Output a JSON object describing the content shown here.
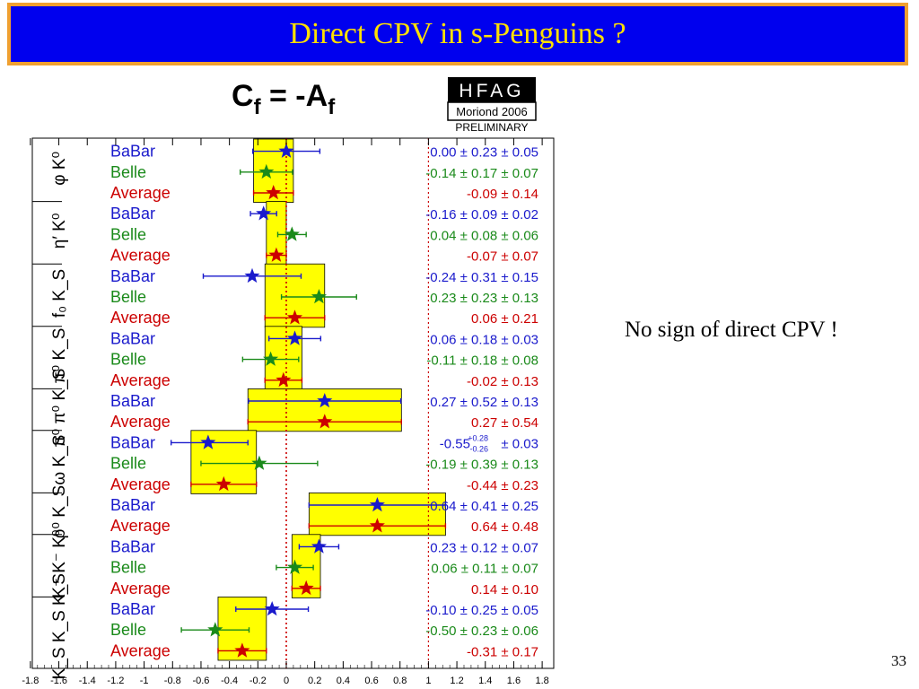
{
  "slide": {
    "title": "Direct CPV in s-Penguins ?",
    "note": "No sign of direct CPV !",
    "page_number": "33"
  },
  "plot_header": {
    "title_main": "C",
    "title_sub": "f",
    "title_eq": " = -A",
    "title_sub2": "f",
    "badge_top": "HFAG",
    "badge_mid": "Moriond 2006",
    "badge_bottom": "PRELIMINARY"
  },
  "colors": {
    "title_bg": "#0000ee",
    "title_border": "#f0a030",
    "title_text": "#ffe000",
    "babar": "#1a1acc",
    "belle": "#1a8a1a",
    "average": "#cc0000",
    "band": "#ffff00"
  },
  "chart_data": {
    "type": "scatter",
    "title": "Cf = -Af",
    "xlabel": "",
    "ylabel": "",
    "xlim": [
      -1.8,
      1.8
    ],
    "x_ticks": [
      "-1.8",
      "-1.6",
      "-1.4",
      "-1.2",
      "-1",
      "-0.8",
      "-0.6",
      "-0.4",
      "-0.2",
      "0",
      "0.2",
      "0.4",
      "0.6",
      "0.8",
      "1",
      "1.2",
      "1.4",
      "1.6",
      "1.8"
    ],
    "reference_line": 0,
    "grid": false,
    "groups": [
      {
        "mode": "φ K⁰",
        "average": -0.09,
        "avg_err": 0.14,
        "entries": [
          {
            "exp": "BaBar",
            "value": 0.0,
            "label": "0.00 ± 0.23 ± 0.05",
            "err_lo": 0.236,
            "err_hi": 0.236
          },
          {
            "exp": "Belle",
            "value": -0.14,
            "label": "-0.14 ± 0.17 ± 0.07",
            "err_lo": 0.184,
            "err_hi": 0.184
          },
          {
            "exp": "Average",
            "value": -0.09,
            "label": "-0.09 ± 0.14",
            "err_lo": 0.14,
            "err_hi": 0.14
          }
        ]
      },
      {
        "mode": "η′ K⁰",
        "average": -0.07,
        "avg_err": 0.07,
        "entries": [
          {
            "exp": "BaBar",
            "value": -0.16,
            "label": "-0.16 ± 0.09 ± 0.02",
            "err_lo": 0.092,
            "err_hi": 0.092
          },
          {
            "exp": "Belle",
            "value": 0.04,
            "label": "0.04 ± 0.08 ± 0.06",
            "err_lo": 0.1,
            "err_hi": 0.1
          },
          {
            "exp": "Average",
            "value": -0.07,
            "label": "-0.07 ± 0.07",
            "err_lo": 0.07,
            "err_hi": 0.07
          }
        ]
      },
      {
        "mode": "f₀ K_S",
        "average": 0.06,
        "avg_err": 0.21,
        "entries": [
          {
            "exp": "BaBar",
            "value": -0.24,
            "label": "-0.24 ± 0.31 ± 0.15",
            "err_lo": 0.344,
            "err_hi": 0.344
          },
          {
            "exp": "Belle",
            "value": 0.23,
            "label": "0.23 ± 0.23 ± 0.13",
            "err_lo": 0.264,
            "err_hi": 0.264
          },
          {
            "exp": "Average",
            "value": 0.06,
            "label": "0.06 ± 0.21",
            "err_lo": 0.21,
            "err_hi": 0.21
          }
        ]
      },
      {
        "mode": "π⁰ K_S",
        "average": -0.02,
        "avg_err": 0.13,
        "entries": [
          {
            "exp": "BaBar",
            "value": 0.06,
            "label": "0.06 ± 0.18 ± 0.03",
            "err_lo": 0.182,
            "err_hi": 0.182
          },
          {
            "exp": "Belle",
            "value": -0.11,
            "label": "-0.11 ± 0.18 ± 0.08",
            "err_lo": 0.197,
            "err_hi": 0.197
          },
          {
            "exp": "Average",
            "value": -0.02,
            "label": "-0.02 ± 0.13",
            "err_lo": 0.13,
            "err_hi": 0.13
          }
        ]
      },
      {
        "mode": "π⁰ π⁰ K_S",
        "average": 0.27,
        "avg_err": 0.54,
        "entries": [
          {
            "exp": "BaBar",
            "value": 0.27,
            "label": "0.27 ± 0.52 ± 0.13",
            "err_lo": 0.536,
            "err_hi": 0.536
          },
          {
            "exp": "Average",
            "value": 0.27,
            "label": "0.27 ± 0.54",
            "err_lo": 0.54,
            "err_hi": 0.54
          }
        ]
      },
      {
        "mode": "ω K_S",
        "average": -0.44,
        "avg_err": 0.23,
        "entries": [
          {
            "exp": "BaBar",
            "value": -0.55,
            "label": "-0.55",
            "label_sup": "+0.28",
            "label_sub": "-0.26",
            "label_tail": "± 0.03",
            "err_lo": 0.26,
            "err_hi": 0.28
          },
          {
            "exp": "Belle",
            "value": -0.19,
            "label": "-0.19 ± 0.39 ± 0.13",
            "err_lo": 0.41,
            "err_hi": 0.41
          },
          {
            "exp": "Average",
            "value": -0.44,
            "label": "-0.44 ± 0.23",
            "err_lo": 0.23,
            "err_hi": 0.23
          }
        ]
      },
      {
        "mode": "ρ⁰ K_S",
        "average": 0.64,
        "avg_err": 0.48,
        "entries": [
          {
            "exp": "BaBar",
            "value": 0.64,
            "label": "0.64 ± 0.41 ± 0.25",
            "err_lo": 0.48,
            "err_hi": 0.48
          },
          {
            "exp": "Average",
            "value": 0.64,
            "label": "0.64 ± 0.48",
            "err_lo": 0.48,
            "err_hi": 0.48
          }
        ]
      },
      {
        "mode": "K⁺ K⁻ K⁰",
        "average": 0.14,
        "avg_err": 0.1,
        "entries": [
          {
            "exp": "BaBar",
            "value": 0.23,
            "label": "0.23 ± 0.12 ± 0.07",
            "err_lo": 0.139,
            "err_hi": 0.139
          },
          {
            "exp": "Belle",
            "value": 0.06,
            "label": "0.06 ± 0.11 ± 0.07",
            "err_lo": 0.13,
            "err_hi": 0.13
          },
          {
            "exp": "Average",
            "value": 0.14,
            "label": "0.14 ± 0.10",
            "err_lo": 0.1,
            "err_hi": 0.1
          }
        ]
      },
      {
        "mode": "K_S K_S K_S",
        "average": -0.31,
        "avg_err": 0.17,
        "entries": [
          {
            "exp": "BaBar",
            "value": -0.1,
            "label": "-0.10 ± 0.25 ± 0.05",
            "err_lo": 0.255,
            "err_hi": 0.255
          },
          {
            "exp": "Belle",
            "value": -0.5,
            "label": "-0.50 ± 0.23 ± 0.06",
            "err_lo": 0.238,
            "err_hi": 0.238
          },
          {
            "exp": "Average",
            "value": -0.31,
            "label": "-0.31 ± 0.17",
            "err_lo": 0.17,
            "err_hi": 0.17
          }
        ]
      }
    ]
  }
}
